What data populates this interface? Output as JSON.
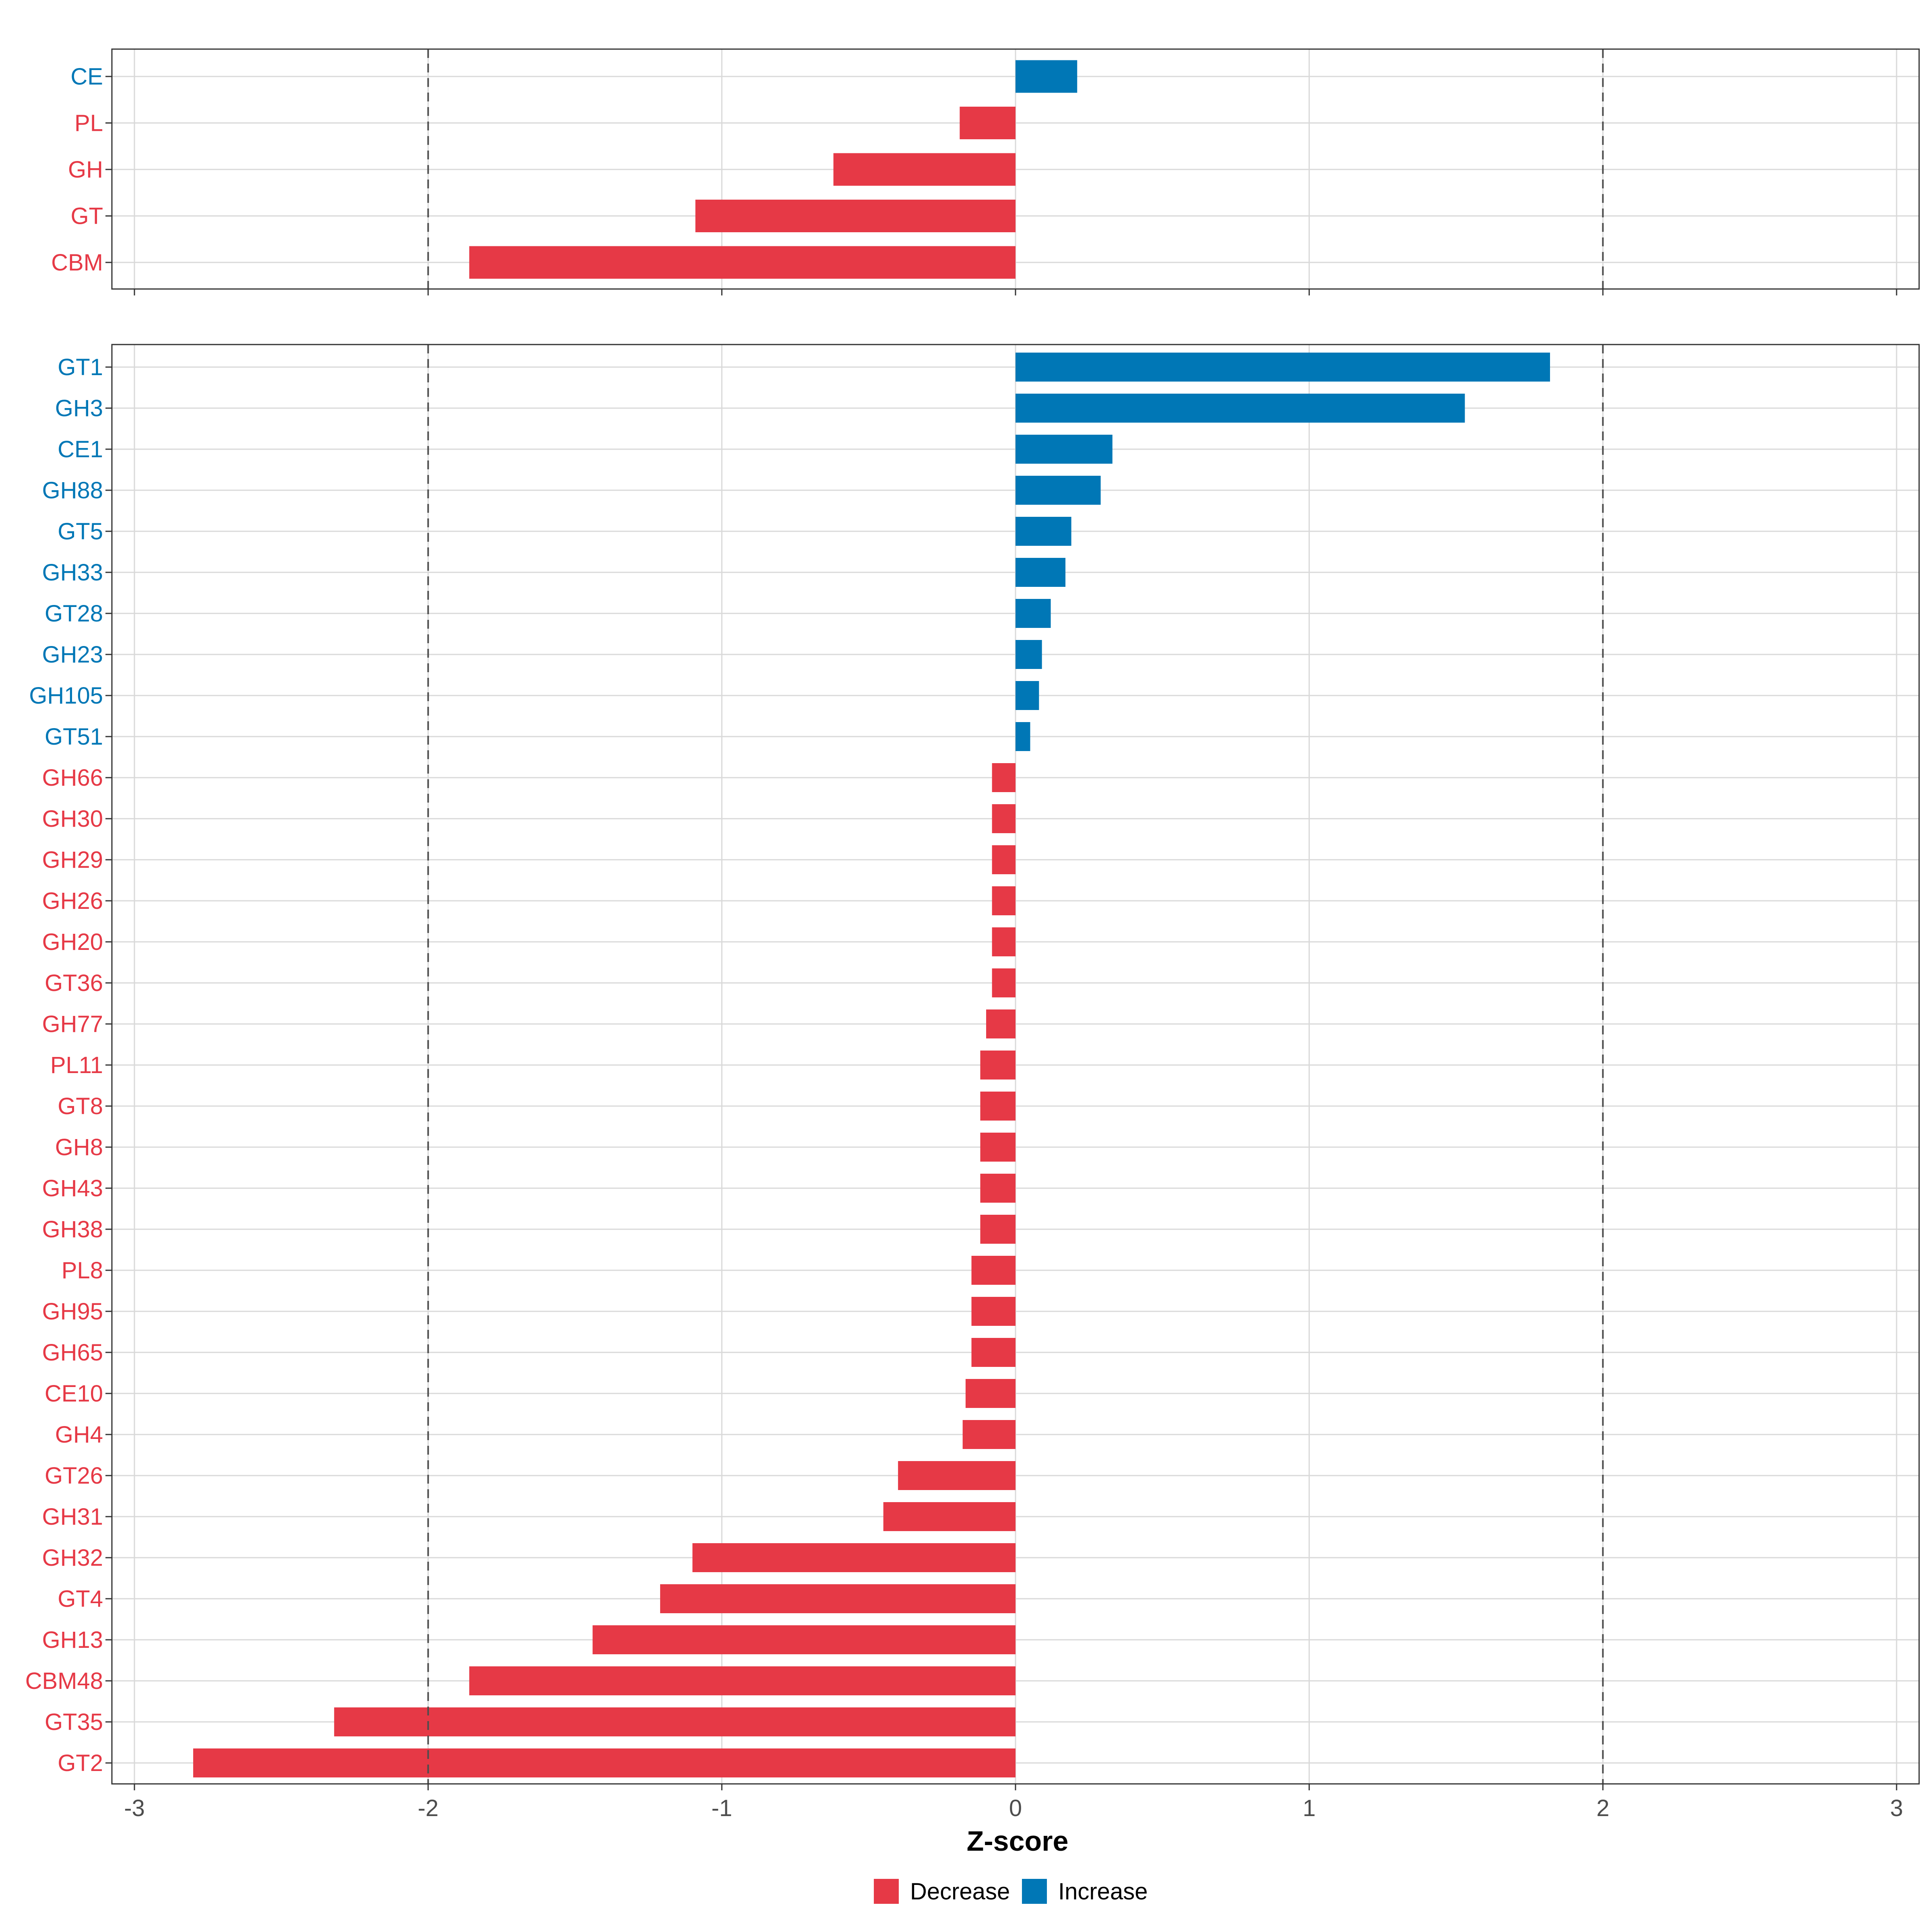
{
  "chart_data": [
    {
      "type": "bar",
      "orientation": "horizontal",
      "panel": "top",
      "categories": [
        "CE",
        "PL",
        "GH",
        "GT",
        "CBM"
      ],
      "values": [
        0.21,
        -0.19,
        -0.62,
        -1.09,
        -1.86
      ],
      "xlim": [
        -3,
        3
      ],
      "reference_lines": [
        -2,
        2
      ],
      "grid": true
    },
    {
      "type": "bar",
      "orientation": "horizontal",
      "panel": "bottom",
      "categories": [
        "GT1",
        "GH3",
        "CE1",
        "GH88",
        "GT5",
        "GH33",
        "GT28",
        "GH23",
        "GH105",
        "GT51",
        "GH66",
        "GH30",
        "GH29",
        "GH26",
        "GH20",
        "GT36",
        "GH77",
        "PL11",
        "GT8",
        "GH8",
        "GH43",
        "GH38",
        "PL8",
        "GH95",
        "GH65",
        "CE10",
        "GH4",
        "GT26",
        "GH31",
        "GH32",
        "GT4",
        "GH13",
        "CBM48",
        "GT35",
        "GT2"
      ],
      "values": [
        1.82,
        1.53,
        0.33,
        0.29,
        0.19,
        0.17,
        0.12,
        0.09,
        0.08,
        0.05,
        -0.08,
        -0.08,
        -0.08,
        -0.08,
        -0.08,
        -0.08,
        -0.1,
        -0.12,
        -0.12,
        -0.12,
        -0.12,
        -0.12,
        -0.15,
        -0.15,
        -0.15,
        -0.17,
        -0.18,
        -0.4,
        -0.45,
        -1.1,
        -1.21,
        -1.44,
        -1.86,
        -2.32,
        -2.8
      ],
      "xlim": [
        -3,
        3
      ],
      "reference_lines": [
        -2,
        2
      ],
      "grid": true
    }
  ],
  "x_ticks": [
    "-3",
    "-2",
    "-1",
    "0",
    "1",
    "2",
    "3"
  ],
  "x_tick_values": [
    -3,
    -2,
    -1,
    0,
    1,
    2,
    3
  ],
  "xlabel": "Z-score",
  "legend": {
    "position": "bottom",
    "items": [
      {
        "label": "Decrease",
        "color": "#e63946"
      },
      {
        "label": "Increase",
        "color": "#0077b6"
      }
    ]
  },
  "colors": {
    "decrease": "#e63946",
    "increase": "#0077b6",
    "grid": "#d9d9d9",
    "panel_border": "#333333",
    "reference_line": "#4d4d4d"
  }
}
